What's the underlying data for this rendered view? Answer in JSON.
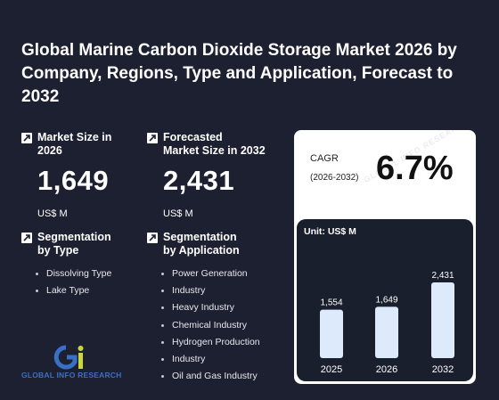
{
  "title": "Global Marine Carbon Dioxide Storage Market 2026 by Company, Regions, Type and Application, Forecast to 2032",
  "market_size": {
    "label": "Market Size in\n2026",
    "value": "1,649",
    "unit": "US$ M",
    "icon": "trend-up-icon"
  },
  "forecast_size": {
    "label": "Forecasted\nMarket Size in 2032",
    "value": "2,431",
    "unit": "US$ M",
    "icon": "trend-up-icon"
  },
  "seg_type": {
    "label": "Segmentation\nby Type",
    "items": [
      "Dissolving Type",
      "Lake Type"
    ],
    "icon": "trend-up-icon"
  },
  "seg_app": {
    "label": "Segmentation\nby Application",
    "items": [
      "Power Generation",
      "Industry",
      "Heavy Industry",
      "Chemical Industry",
      "Hydrogen Production",
      "Industry",
      "Oil and Gas Industry"
    ],
    "icon": "trend-up-icon"
  },
  "cagr": {
    "label": "CAGR",
    "years": "(2026-2032)",
    "value": "6.7%"
  },
  "logo": {
    "text": "GLOBAL INFO RESEARCH",
    "icon": "gi-logo-icon"
  },
  "colors": {
    "background": "#1c2030",
    "bar": "#ddeafc",
    "card": "#ffffff",
    "chart_bg": "#1a1f2e"
  },
  "chart_data": {
    "type": "bar",
    "title": "",
    "unit_label": "Unit: US$ M",
    "categories": [
      "2025",
      "2026",
      "2032"
    ],
    "values": [
      1554,
      1649,
      2431
    ],
    "value_labels": [
      "1,554",
      "1,649",
      "2,431"
    ],
    "ylim": [
      0,
      2431
    ],
    "grid": false,
    "legend": "none"
  }
}
